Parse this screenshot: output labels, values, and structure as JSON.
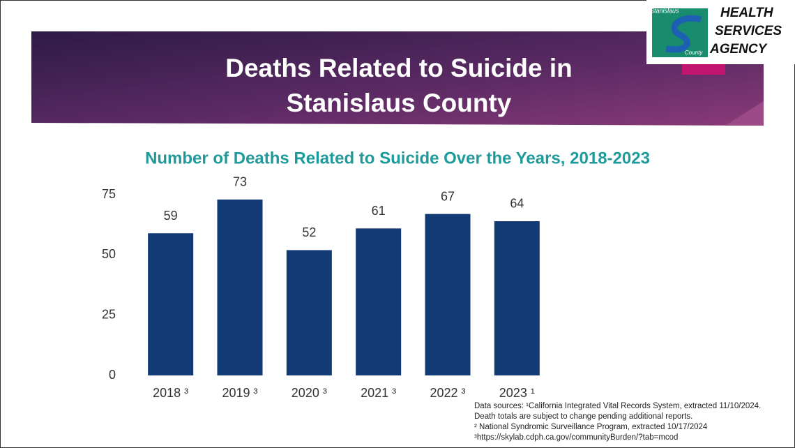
{
  "header": {
    "title_lines": [
      "Deaths Related to Suicide in",
      "Stanislaus County"
    ]
  },
  "logo": {
    "small_top": "Stanislaus",
    "small_bottom": "County",
    "lines": [
      "HEALTH",
      "SERVICES",
      "AGENCY"
    ]
  },
  "chart_data": {
    "type": "bar",
    "title": "Number of Deaths Related to Suicide Over the Years, 2018-2023",
    "categories": [
      "2018 ³",
      "2019 ³",
      "2020 ³",
      "2021 ³",
      "2022 ³",
      "2023 ¹"
    ],
    "values": [
      59,
      73,
      52,
      61,
      67,
      64
    ],
    "color": "#123a75",
    "ylim": [
      0,
      75
    ],
    "yticks": [
      0,
      25,
      50,
      75
    ],
    "grid": false
  },
  "sources": [
    "Data sources: ¹California Integrated Vital Records System, extracted 11/10/2024.",
    "Death totals are subject to change pending additional reports.",
    "² National Syndromic Surveillance Program, extracted 10/17/2024",
    "³https://skylab.cdph.ca.gov/communityBurden/?tab=mcod"
  ]
}
